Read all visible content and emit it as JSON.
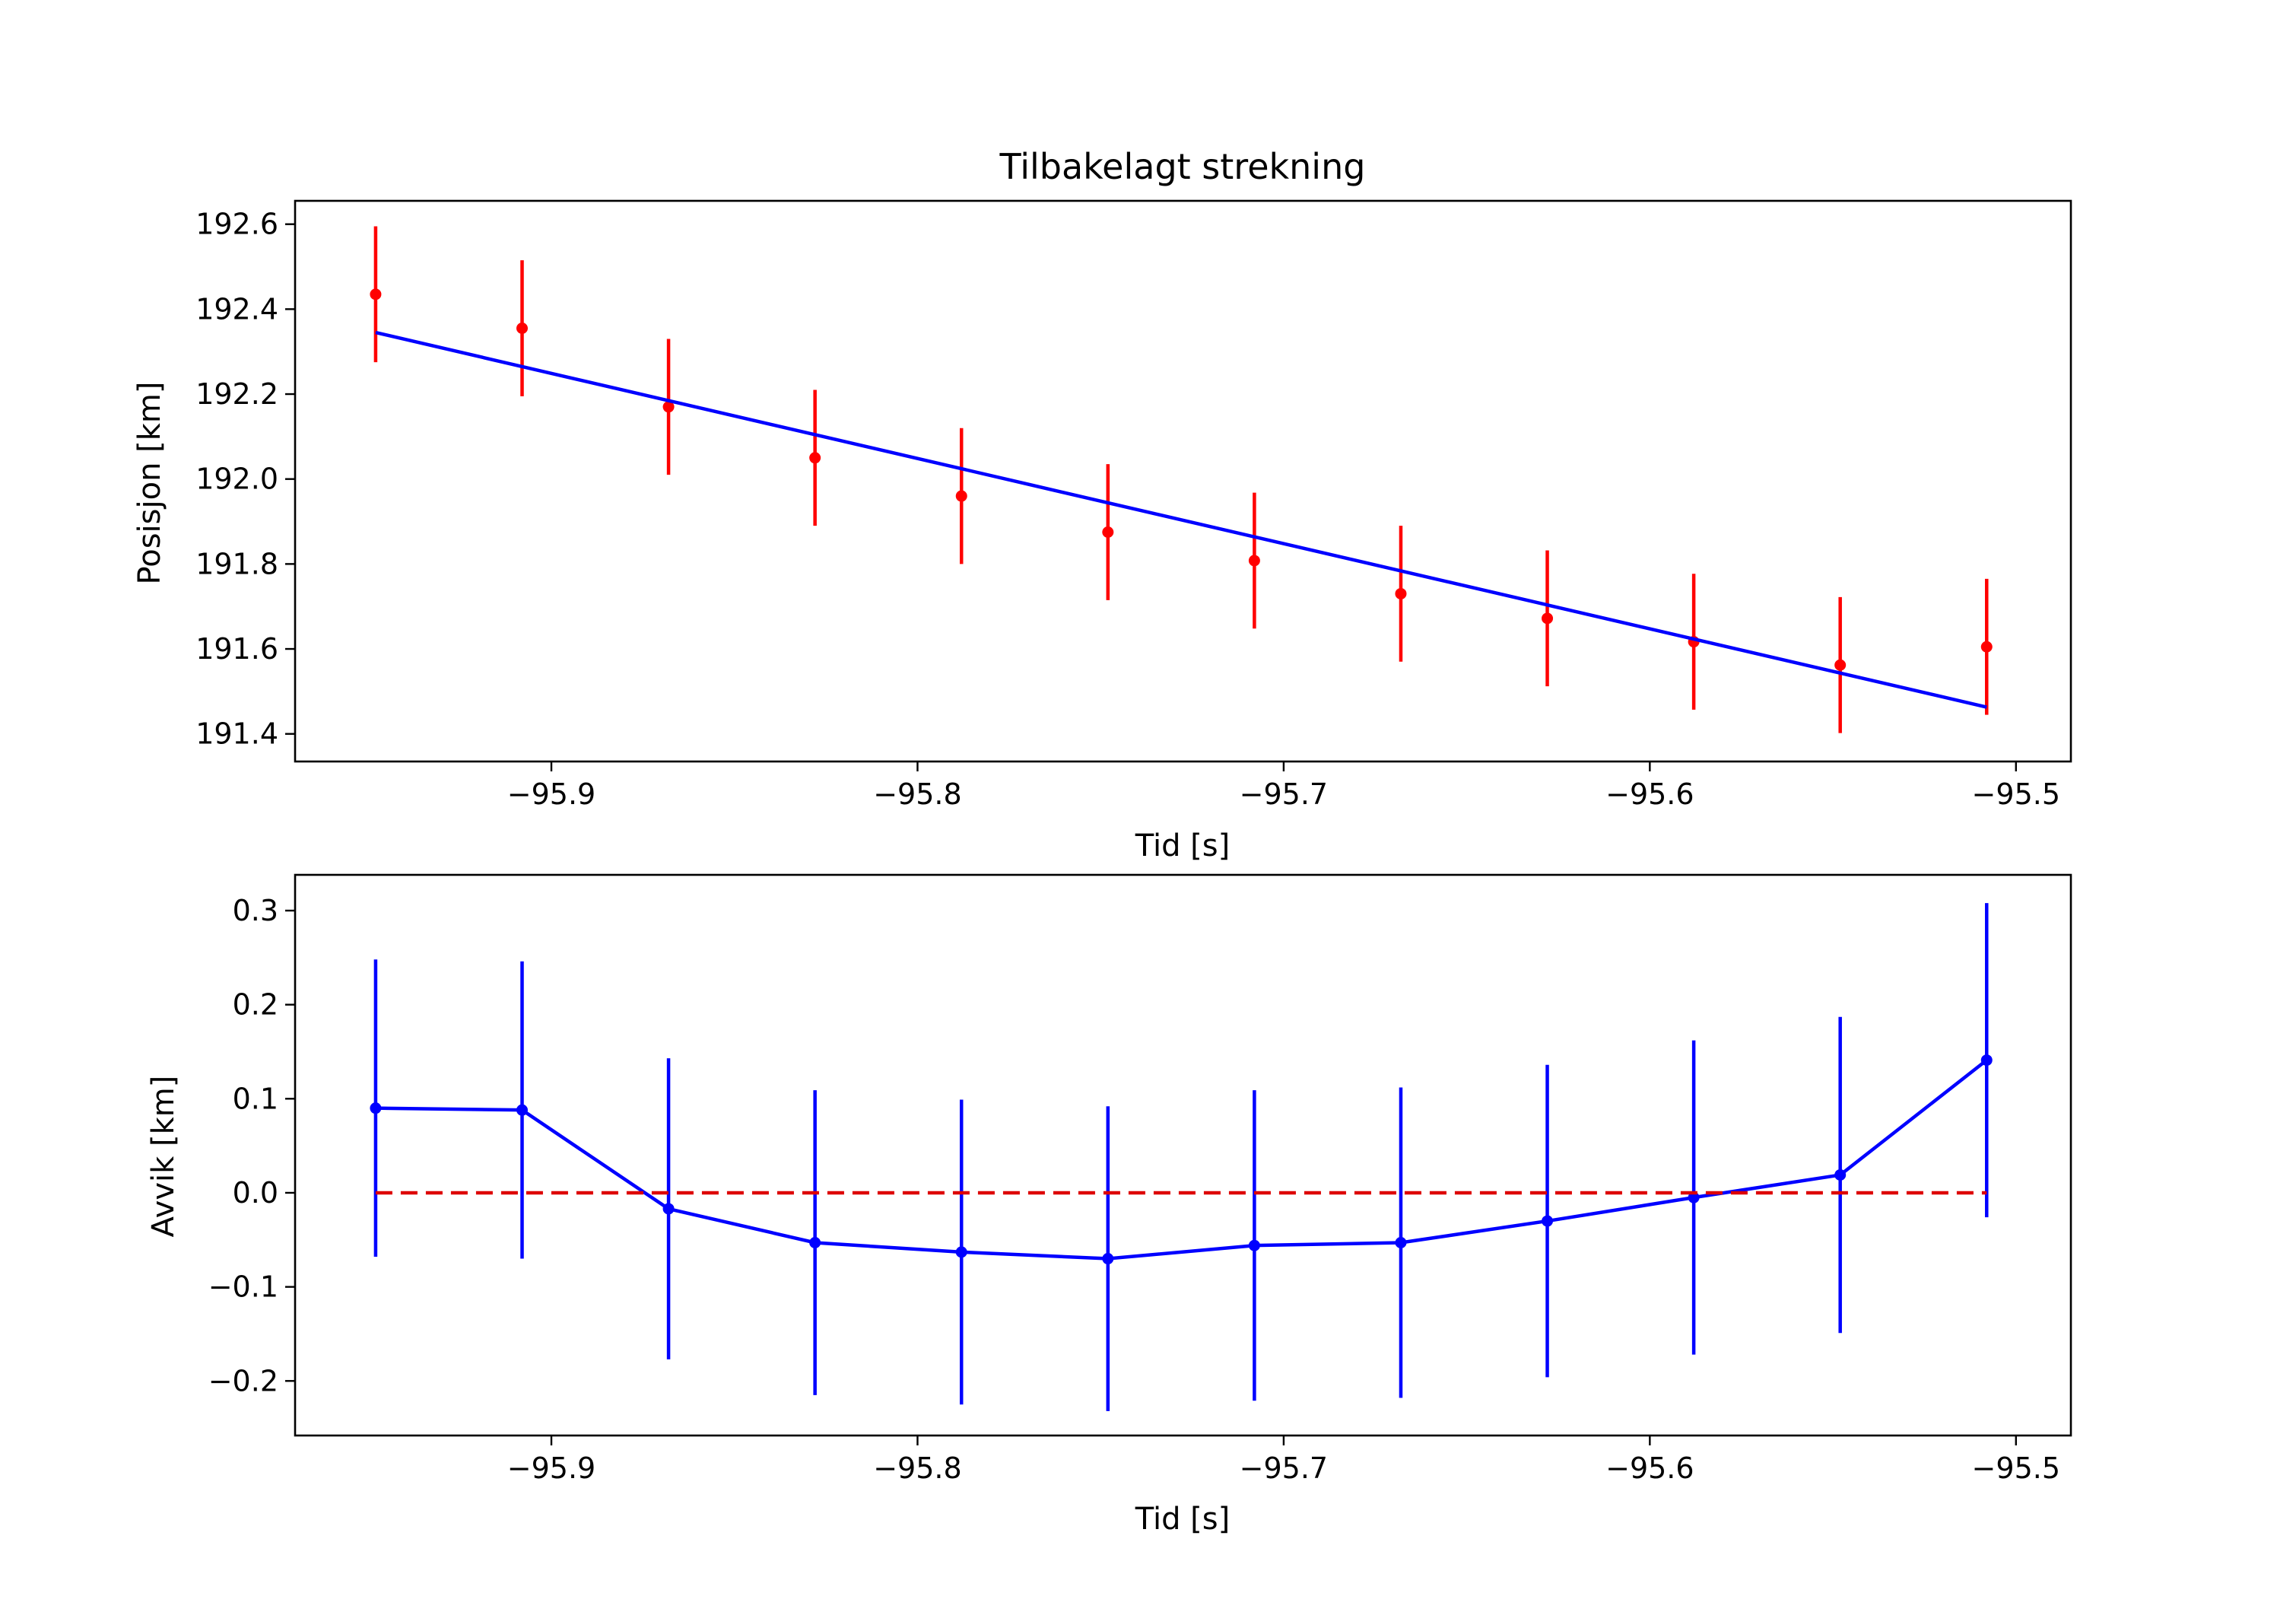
{
  "chart_data": [
    {
      "type": "scatter",
      "title": "Tilbakelagt strekning",
      "xlabel": "Tid [s]",
      "ylabel": "Posisjon [km]",
      "xlim": [
        -95.97,
        -95.485
      ],
      "ylim": [
        191.335,
        192.655
      ],
      "xticks": [
        -95.9,
        -95.8,
        -95.7,
        -95.6,
        -95.5
      ],
      "xtick_labels": [
        "−95.9",
        "−95.8",
        "−95.7",
        "−95.6",
        "−95.5"
      ],
      "yticks": [
        191.4,
        191.6,
        191.8,
        192.0,
        192.2,
        192.4,
        192.6
      ],
      "ytick_labels": [
        "191.4",
        "191.6",
        "191.8",
        "192.0",
        "192.2",
        "192.4",
        "192.6"
      ],
      "grid": false,
      "series": [
        {
          "kind": "errorbar",
          "color": "#ff0000",
          "x": [
            -95.948,
            -95.908,
            -95.868,
            -95.828,
            -95.788,
            -95.748,
            -95.708,
            -95.668,
            -95.628,
            -95.588,
            -95.548,
            -95.508
          ],
          "y": [
            192.435,
            192.355,
            192.17,
            192.05,
            191.96,
            191.875,
            191.808,
            191.73,
            191.672,
            191.617,
            191.562,
            191.605
          ],
          "yerr": [
            0.16,
            0.16,
            0.16,
            0.16,
            0.16,
            0.16,
            0.16,
            0.16,
            0.16,
            0.16,
            0.16,
            0.16
          ]
        },
        {
          "kind": "line",
          "color": "#0000ff",
          "x": [
            -95.948,
            -95.508
          ],
          "y": [
            192.345,
            191.463
          ]
        }
      ]
    },
    {
      "type": "line",
      "title": "",
      "xlabel": "Tid [s]",
      "ylabel": "Avvik [km]",
      "xlim": [
        -95.97,
        -95.485
      ],
      "ylim": [
        -0.258,
        0.338
      ],
      "xticks": [
        -95.9,
        -95.8,
        -95.7,
        -95.6,
        -95.5
      ],
      "xtick_labels": [
        "−95.9",
        "−95.8",
        "−95.7",
        "−95.6",
        "−95.5"
      ],
      "yticks": [
        -0.2,
        -0.1,
        0.0,
        0.1,
        0.2,
        0.3
      ],
      "ytick_labels": [
        "−0.2",
        "−0.1",
        "0.0",
        "0.1",
        "0.2",
        "0.3"
      ],
      "grid": false,
      "series": [
        {
          "kind": "errorbar-line",
          "color": "#0000ff",
          "x": [
            -95.948,
            -95.908,
            -95.868,
            -95.828,
            -95.788,
            -95.748,
            -95.708,
            -95.668,
            -95.628,
            -95.588,
            -95.548,
            -95.508
          ],
          "y": [
            0.09,
            0.088,
            -0.017,
            -0.053,
            -0.063,
            -0.07,
            -0.056,
            -0.053,
            -0.03,
            -0.005,
            0.019,
            0.141
          ],
          "yerr": [
            0.158,
            0.158,
            0.16,
            0.162,
            0.162,
            0.162,
            0.165,
            0.165,
            0.166,
            0.167,
            0.168,
            0.167
          ]
        },
        {
          "kind": "dashed-line",
          "color": "#dd0000",
          "x": [
            -95.948,
            -95.508
          ],
          "y": [
            0.0,
            0.0
          ]
        }
      ]
    }
  ]
}
